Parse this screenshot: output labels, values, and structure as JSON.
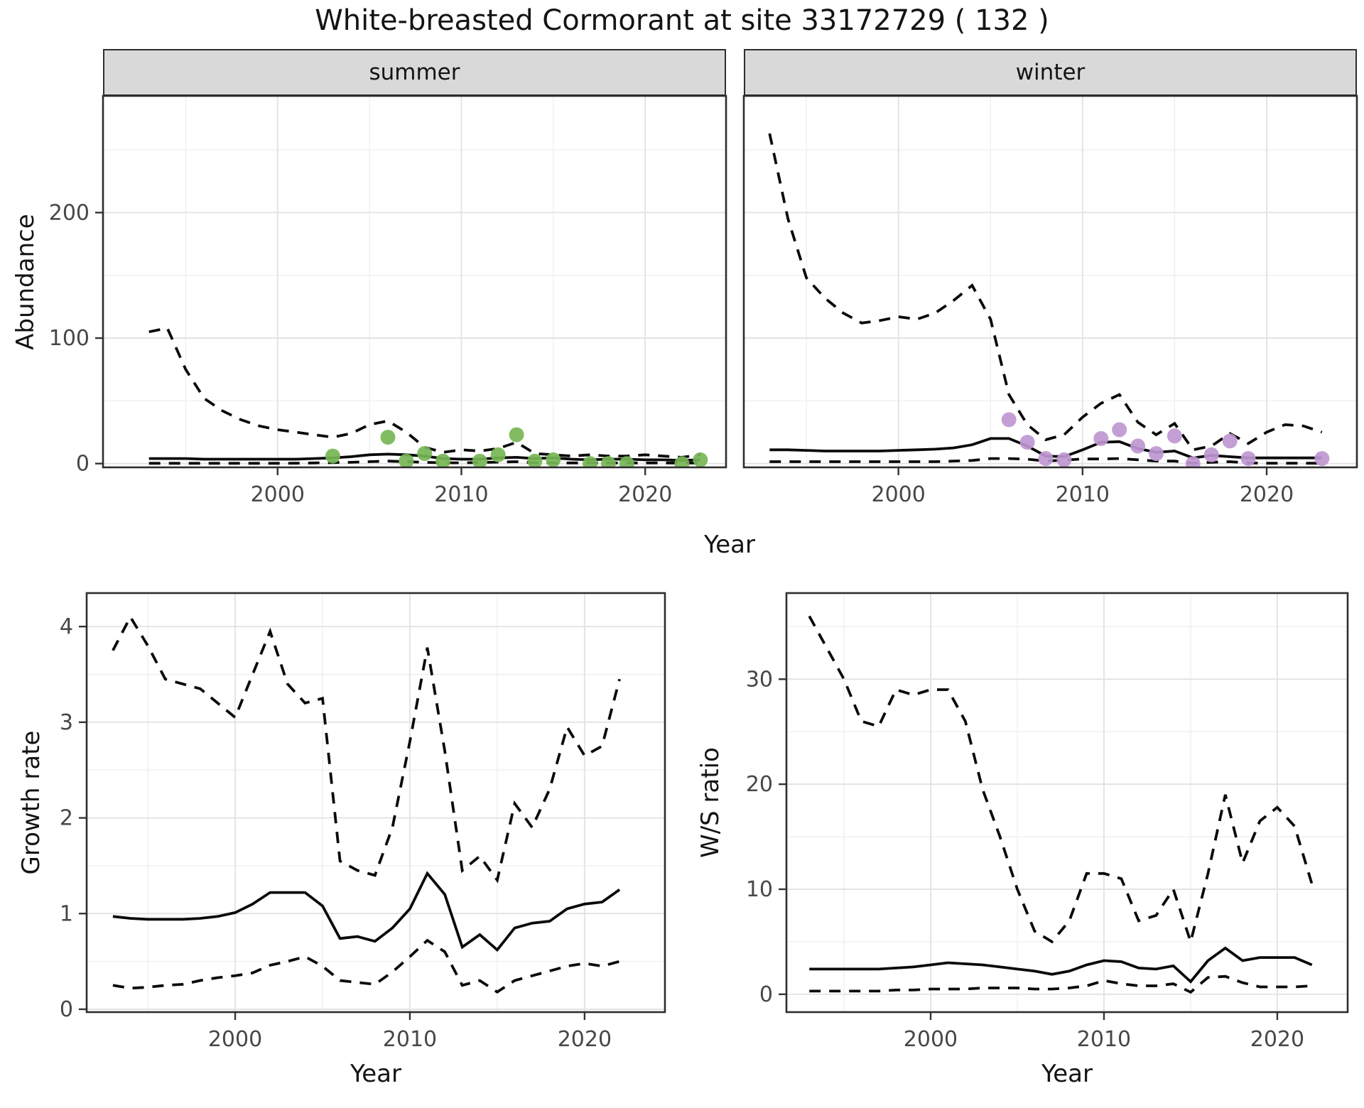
{
  "title": "White-breasted Cormorant at site 33172729 ( 132 )",
  "facets": {
    "summer": "summer",
    "winter": "winter"
  },
  "axis_titles": {
    "abundance": "Abundance",
    "year": "Year",
    "growth": "Growth rate",
    "ws": "W/S ratio"
  },
  "colors": {
    "summer_points": "#77b655",
    "winter_points": "#bf97d1",
    "line": "#0a0a0a",
    "strip_bg": "#d9d9d9",
    "grid_major": "#e3e3e3",
    "grid_minor": "#efefef",
    "panel_border": "#2e2e2e",
    "tick_text": "#474747"
  },
  "chart_data": [
    {
      "type": "line",
      "facet": "summer",
      "xlabel": "Year",
      "ylabel": "Abundance",
      "xticks": [
        2000,
        2010,
        2020
      ],
      "yticks": [
        0,
        100,
        200
      ],
      "xlim": [
        1990.5,
        2024.4
      ],
      "ylim": [
        -3,
        293
      ],
      "grid": true,
      "x": [
        1993,
        1994,
        1995,
        1996,
        1997,
        1998,
        1999,
        2000,
        2001,
        2002,
        2003,
        2004,
        2005,
        2006,
        2007,
        2008,
        2009,
        2010,
        2011,
        2012,
        2013,
        2014,
        2015,
        2016,
        2017,
        2018,
        2019,
        2020,
        2021,
        2022,
        2023
      ],
      "series": [
        {
          "name": "upper95",
          "style": "dashed",
          "values": [
            105,
            108,
            75,
            52,
            42,
            35,
            30,
            27,
            25,
            23,
            21,
            24,
            31,
            34,
            25,
            13,
            9,
            11,
            10,
            12,
            17,
            8,
            7,
            6,
            7,
            6,
            6,
            7,
            6,
            5,
            7
          ]
        },
        {
          "name": "median",
          "style": "solid",
          "values": [
            4,
            4,
            4,
            3.5,
            3.5,
            3.5,
            3.5,
            3.5,
            3.5,
            4,
            4.5,
            5.5,
            7,
            7.5,
            7,
            6,
            4,
            3.5,
            3.5,
            4.5,
            5,
            4,
            4.5,
            3.5,
            3,
            3.5,
            3.5,
            3,
            3,
            2.5,
            3
          ]
        },
        {
          "name": "lower95",
          "style": "dashed",
          "values": [
            0.2,
            0.2,
            0.2,
            0.2,
            0.2,
            0.2,
            0.2,
            0.2,
            0.3,
            0.5,
            0.8,
            1,
            1.5,
            2,
            1.5,
            1,
            0.6,
            0.6,
            0.8,
            1.2,
            1.5,
            0.6,
            0.5,
            0.5,
            0.5,
            0.5,
            0.5,
            0.5,
            0.5,
            0.4,
            0.5
          ]
        }
      ],
      "points": {
        "name": "observed-counts-summer",
        "color": "#77b655",
        "xy": [
          [
            2003,
            6
          ],
          [
            2006,
            21
          ],
          [
            2007,
            2
          ],
          [
            2008,
            8
          ],
          [
            2009,
            2
          ],
          [
            2011,
            2
          ],
          [
            2012,
            7
          ],
          [
            2013,
            23
          ],
          [
            2014,
            2
          ],
          [
            2015,
            3
          ],
          [
            2017,
            0
          ],
          [
            2018,
            0
          ],
          [
            2019,
            0
          ],
          [
            2022,
            0
          ],
          [
            2023,
            3
          ]
        ]
      }
    },
    {
      "type": "line",
      "facet": "winter",
      "xlabel": "Year",
      "ylabel": "Abundance",
      "xticks": [
        2000,
        2010,
        2020
      ],
      "yticks": [
        0,
        100,
        200
      ],
      "xlim": [
        1991.6,
        2024.9
      ],
      "ylim": [
        -3,
        293
      ],
      "grid": true,
      "x": [
        1993,
        1994,
        1995,
        1996,
        1997,
        1998,
        1999,
        2000,
        2001,
        2002,
        2003,
        2004,
        2005,
        2006,
        2007,
        2008,
        2009,
        2010,
        2011,
        2012,
        2013,
        2014,
        2015,
        2016,
        2017,
        2018,
        2019,
        2020,
        2021,
        2022,
        2023
      ],
      "series": [
        {
          "name": "upper95",
          "style": "dashed",
          "values": [
            263,
            195,
            148,
            132,
            120,
            112,
            114,
            117,
            115,
            120,
            130,
            142,
            115,
            55,
            31,
            19,
            23,
            37,
            48,
            55,
            33,
            23,
            32,
            11,
            14,
            24,
            16,
            25,
            31,
            30,
            25
          ]
        },
        {
          "name": "median",
          "style": "solid",
          "values": [
            11,
            11,
            10.5,
            10,
            10,
            10,
            10,
            10.5,
            11,
            11.5,
            12.5,
            15,
            20,
            20,
            14,
            6,
            5.5,
            11,
            17,
            17.5,
            12,
            9,
            10,
            4.5,
            6.5,
            5.5,
            4.5,
            4.5,
            4.5,
            4.5,
            4.5
          ]
        },
        {
          "name": "lower95",
          "style": "dashed",
          "values": [
            1.5,
            1.5,
            1.5,
            1.5,
            1.5,
            1.5,
            1.5,
            1.5,
            1.5,
            1.5,
            2,
            2.5,
            4,
            4,
            3.5,
            2,
            2.8,
            3.7,
            3.7,
            4,
            3,
            2,
            2,
            0.2,
            1,
            1.5,
            0.5,
            0.3,
            0.3,
            0.3,
            0.3
          ]
        }
      ],
      "points": {
        "name": "observed-counts-winter",
        "color": "#bf97d1",
        "xy": [
          [
            2006,
            35
          ],
          [
            2007,
            17
          ],
          [
            2008,
            4
          ],
          [
            2009,
            3
          ],
          [
            2011,
            20
          ],
          [
            2012,
            27
          ],
          [
            2013,
            14
          ],
          [
            2014,
            8
          ],
          [
            2015,
            22
          ],
          [
            2016,
            0
          ],
          [
            2017,
            7
          ],
          [
            2018,
            18
          ],
          [
            2019,
            4
          ],
          [
            2023,
            4
          ]
        ]
      }
    },
    {
      "type": "line",
      "facet": "growth-rate",
      "xlabel": "Year",
      "ylabel": "Growth rate",
      "xticks": [
        2000,
        2010,
        2020
      ],
      "yticks": [
        0,
        1,
        2,
        3,
        4
      ],
      "xlim": [
        1991.5,
        2024.6
      ],
      "ylim": [
        -0.03,
        4.35
      ],
      "grid": true,
      "x": [
        1993,
        1994,
        1995,
        1996,
        1997,
        1998,
        1999,
        2000,
        2001,
        2002,
        2003,
        2004,
        2005,
        2006,
        2007,
        2008,
        2009,
        2010,
        2011,
        2012,
        2013,
        2014,
        2015,
        2016,
        2017,
        2018,
        2019,
        2020,
        2021,
        2022
      ],
      "series": [
        {
          "name": "upper95",
          "style": "dashed",
          "values": [
            3.75,
            4.1,
            3.8,
            3.45,
            3.4,
            3.35,
            3.2,
            3.05,
            3.5,
            3.95,
            3.4,
            3.2,
            3.25,
            1.55,
            1.45,
            1.4,
            1.9,
            2.8,
            3.78,
            2.7,
            1.45,
            1.6,
            1.35,
            2.15,
            1.9,
            2.3,
            2.95,
            2.65,
            2.75,
            3.45
          ]
        },
        {
          "name": "median",
          "style": "solid",
          "values": [
            0.97,
            0.95,
            0.94,
            0.94,
            0.94,
            0.95,
            0.97,
            1.01,
            1.1,
            1.22,
            1.22,
            1.22,
            1.08,
            0.74,
            0.76,
            0.71,
            0.85,
            1.05,
            1.42,
            1.2,
            0.65,
            0.78,
            0.62,
            0.85,
            0.9,
            0.92,
            1.05,
            1.1,
            1.12,
            1.25
          ]
        },
        {
          "name": "lower95",
          "style": "dashed",
          "values": [
            0.25,
            0.22,
            0.23,
            0.25,
            0.26,
            0.3,
            0.33,
            0.35,
            0.38,
            0.46,
            0.5,
            0.55,
            0.45,
            0.3,
            0.28,
            0.26,
            0.39,
            0.55,
            0.72,
            0.6,
            0.25,
            0.3,
            0.18,
            0.3,
            0.35,
            0.4,
            0.45,
            0.48,
            0.45,
            0.5
          ]
        }
      ],
      "points": null
    },
    {
      "type": "line",
      "facet": "ws-ratio",
      "xlabel": "Year",
      "ylabel": "W/S ratio",
      "xticks": [
        2000,
        2010,
        2020
      ],
      "yticks": [
        0,
        10,
        20,
        30
      ],
      "xlim": [
        1991.68,
        2024.06
      ],
      "ylim": [
        -1.7,
        38.2
      ],
      "grid": true,
      "x": [
        1993,
        1994,
        1995,
        1996,
        1997,
        1998,
        1999,
        2000,
        2001,
        2002,
        2003,
        2004,
        2005,
        2006,
        2007,
        2008,
        2009,
        2010,
        2011,
        2012,
        2013,
        2014,
        2015,
        2016,
        2017,
        2018,
        2019,
        2020,
        2021,
        2022
      ],
      "series": [
        {
          "name": "upper95",
          "style": "dashed",
          "values": [
            36,
            33,
            30,
            26,
            25.5,
            29,
            28.5,
            29,
            29,
            26,
            19.5,
            15,
            10,
            6,
            5,
            7,
            11.5,
            11.5,
            11,
            7,
            7.5,
            10,
            5,
            11.5,
            19,
            12.5,
            16.5,
            17.8,
            16,
            10.5
          ]
        },
        {
          "name": "median",
          "style": "solid",
          "values": [
            2.4,
            2.4,
            2.4,
            2.4,
            2.4,
            2.5,
            2.6,
            2.8,
            3.0,
            2.9,
            2.8,
            2.6,
            2.4,
            2.2,
            1.9,
            2.2,
            2.8,
            3.2,
            3.1,
            2.5,
            2.4,
            2.7,
            1.2,
            3.2,
            4.4,
            3.2,
            3.5,
            3.5,
            3.5,
            2.8
          ]
        },
        {
          "name": "lower95",
          "style": "dashed",
          "values": [
            0.3,
            0.3,
            0.3,
            0.3,
            0.3,
            0.4,
            0.4,
            0.5,
            0.5,
            0.5,
            0.6,
            0.6,
            0.6,
            0.5,
            0.5,
            0.6,
            0.8,
            1.3,
            1.0,
            0.8,
            0.8,
            1.0,
            0.2,
            1.6,
            1.7,
            1.1,
            0.7,
            0.7,
            0.7,
            0.8
          ]
        }
      ],
      "points": null
    }
  ]
}
